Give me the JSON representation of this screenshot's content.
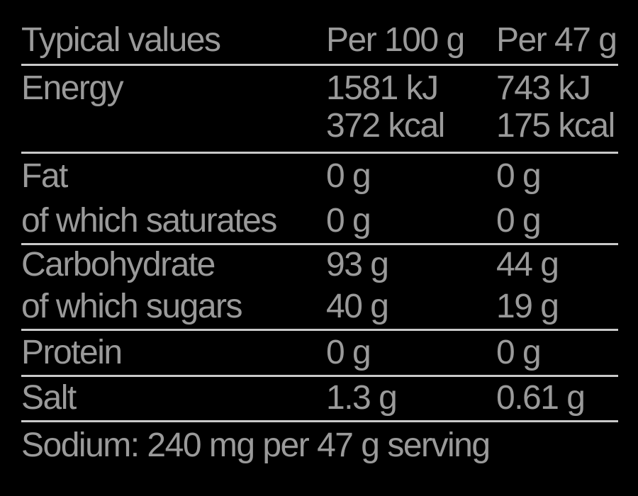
{
  "colors": {
    "background": "#000000",
    "text": "#9a9a9a",
    "rule": "#c9c9c9"
  },
  "table": {
    "header": {
      "col_label": "Typical values",
      "col_per_100g": "Per 100 g",
      "col_per_47g": "Per 47 g"
    },
    "rows": [
      {
        "label": "Energy",
        "per_100g": "1581 kJ",
        "per_47g": "743 kJ",
        "per_100g_line2": "372 kcal",
        "per_47g_line2": "175 kcal"
      },
      {
        "label": "Fat",
        "per_100g": "0 g",
        "per_47g": "0 g"
      },
      {
        "label": "of which saturates",
        "per_100g": "0 g",
        "per_47g": "0 g"
      },
      {
        "label": "Carbohydrate",
        "per_100g": "93 g",
        "per_47g": "44 g"
      },
      {
        "label": "of which sugars",
        "per_100g": "40 g",
        "per_47g": "19 g"
      },
      {
        "label": "Protein",
        "per_100g": "0 g",
        "per_47g": "0 g"
      },
      {
        "label": "Salt",
        "per_100g": "1.3 g",
        "per_47g": "0.61 g"
      }
    ],
    "footnote": "Sodium: 240 mg per 47 g serving"
  }
}
